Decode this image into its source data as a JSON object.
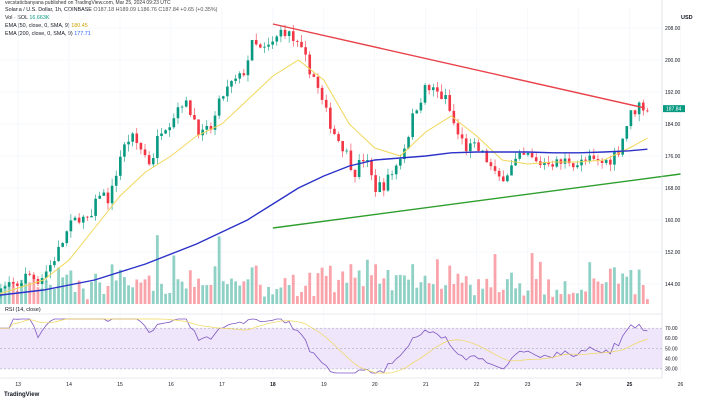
{
  "header": {
    "publisher": "vecstaticbanyana published on TradingView.com, Mar 25, 2024 09:23 UTC",
    "symbol": "Solana / U.S. Dollar, 1h, COINBASE",
    "ohlc": "O187.18 H189.09 L186.76 C187.84 +0.65 (+0.35%)",
    "vol_label": "Vol · SOL",
    "vol_value": "16.663K",
    "ema50_label": "EMA (50, close, 0, SMA, 9)",
    "ema50_value": "180.45",
    "ema200_label": "EMA (200, close, 0, SMA, 9)",
    "ema200_value": "177.71"
  },
  "currency": "USD",
  "rsi_label": "RSI (14, close)",
  "footer_logo": "TradingView",
  "colors": {
    "up": "#089981",
    "down": "#f23645",
    "ema50": "#f0d75a",
    "ema200": "#2b32c8",
    "resistance": "#e8414a",
    "support": "#2e9e2e",
    "rsi_line": "#7e57c2",
    "rsi_band": "#efe6fb"
  },
  "chart_data": {
    "type": "candlestick",
    "symbol": "SOL/USD",
    "timeframe": "1h",
    "x_tick_labels": [
      "13",
      "14",
      "15",
      "16",
      "17",
      "18",
      "19",
      "20",
      "21",
      "22",
      "23",
      "24",
      "25",
      "26"
    ],
    "y_tick_labels": [
      "208.00",
      "200.00",
      "192.00",
      "184.00",
      "176.00",
      "168.00",
      "160.00",
      "152.00",
      "144.00"
    ],
    "ylim": [
      139,
      213
    ],
    "last_price": "187.84",
    "close_path": [
      [
        12.5,
        141.5
      ],
      [
        13.0,
        144.0
      ],
      [
        13.2,
        146.5
      ],
      [
        13.4,
        145.0
      ],
      [
        13.6,
        148.0
      ],
      [
        13.8,
        152.5
      ],
      [
        14.0,
        158.0
      ],
      [
        14.2,
        161.0
      ],
      [
        14.4,
        159.0
      ],
      [
        14.6,
        167.0
      ],
      [
        14.8,
        165.0
      ],
      [
        15.0,
        176.0
      ],
      [
        15.2,
        181.0
      ],
      [
        15.4,
        178.0
      ],
      [
        15.6,
        174.0
      ],
      [
        15.8,
        183.0
      ],
      [
        16.0,
        185.0
      ],
      [
        16.2,
        190.0
      ],
      [
        16.4,
        187.0
      ],
      [
        16.6,
        181.0
      ],
      [
        16.8,
        183.0
      ],
      [
        17.0,
        191.0
      ],
      [
        17.2,
        194.0
      ],
      [
        17.4,
        196.0
      ],
      [
        17.6,
        204.0
      ],
      [
        17.8,
        202.0
      ],
      [
        18.0,
        204.0
      ],
      [
        18.2,
        208.0
      ],
      [
        18.4,
        205.0
      ],
      [
        18.6,
        201.0
      ],
      [
        18.8,
        196.0
      ],
      [
        19.0,
        188.0
      ],
      [
        19.2,
        182.0
      ],
      [
        19.4,
        178.0
      ],
      [
        19.6,
        172.0
      ],
      [
        19.8,
        176.0
      ],
      [
        20.0,
        168.0
      ],
      [
        20.2,
        169.0
      ],
      [
        20.4,
        173.0
      ],
      [
        20.6,
        179.0
      ],
      [
        20.8,
        188.0
      ],
      [
        21.0,
        193.0
      ],
      [
        21.2,
        192.0
      ],
      [
        21.4,
        190.0
      ],
      [
        21.6,
        182.0
      ],
      [
        21.8,
        178.0
      ],
      [
        22.0,
        178.0
      ],
      [
        22.2,
        175.0
      ],
      [
        22.4,
        170.0
      ],
      [
        22.6,
        172.0
      ],
      [
        22.8,
        175.0
      ],
      [
        23.0,
        176.0
      ],
      [
        23.2,
        174.0
      ],
      [
        23.4,
        175.0
      ],
      [
        23.6,
        174.0
      ],
      [
        23.8,
        175.0
      ],
      [
        24.0,
        174.0
      ],
      [
        24.2,
        175.0
      ],
      [
        24.4,
        174.0
      ],
      [
        24.6,
        175.0
      ],
      [
        24.8,
        178.0
      ],
      [
        25.0,
        186.0
      ],
      [
        25.2,
        189.0
      ],
      [
        25.35,
        187.84
      ]
    ],
    "ema50_path": [
      [
        12.5,
        141.0
      ],
      [
        13.5,
        145.0
      ],
      [
        14.0,
        150.0
      ],
      [
        14.5,
        158.0
      ],
      [
        15.0,
        166.0
      ],
      [
        15.5,
        172.0
      ],
      [
        16.0,
        176.0
      ],
      [
        16.5,
        181.0
      ],
      [
        17.0,
        184.0
      ],
      [
        17.5,
        190.0
      ],
      [
        18.0,
        196.0
      ],
      [
        18.5,
        200.0
      ],
      [
        19.0,
        195.0
      ],
      [
        19.5,
        184.0
      ],
      [
        20.0,
        178.0
      ],
      [
        20.5,
        176.0
      ],
      [
        21.0,
        182.0
      ],
      [
        21.5,
        186.0
      ],
      [
        22.0,
        181.0
      ],
      [
        22.5,
        175.0
      ],
      [
        23.0,
        174.0
      ],
      [
        23.5,
        174.5
      ],
      [
        24.0,
        174.5
      ],
      [
        24.5,
        175.0
      ],
      [
        25.0,
        178.0
      ],
      [
        25.35,
        180.45
      ]
    ],
    "ema200_path": [
      [
        12.5,
        141.0
      ],
      [
        13.5,
        142.5
      ],
      [
        14.5,
        145.0
      ],
      [
        15.5,
        149.0
      ],
      [
        16.5,
        154.0
      ],
      [
        17.5,
        160.0
      ],
      [
        18.0,
        164.0
      ],
      [
        18.5,
        168.0
      ],
      [
        19.0,
        171.0
      ],
      [
        19.5,
        173.5
      ],
      [
        20.0,
        175.0
      ],
      [
        20.5,
        175.5
      ],
      [
        21.0,
        176.0
      ],
      [
        21.5,
        176.8
      ],
      [
        22.0,
        177.0
      ],
      [
        22.5,
        177.0
      ],
      [
        23.0,
        177.0
      ],
      [
        23.5,
        176.8
      ],
      [
        24.0,
        176.8
      ],
      [
        24.5,
        177.0
      ],
      [
        25.0,
        177.3
      ],
      [
        25.35,
        177.71
      ]
    ],
    "trendline_resistance": [
      [
        18.0,
        209.0
      ],
      [
        25.3,
        188.0
      ]
    ],
    "trendline_support": [
      [
        18.0,
        158.0
      ],
      [
        26.0,
        171.5
      ]
    ],
    "volume_bars_count": 160,
    "rsi": {
      "ylim": [
        25,
        80
      ],
      "y_tick_labels": [
        "70.00",
        "60.00",
        "50.00",
        "40.00",
        "30.00"
      ],
      "band": [
        30,
        70
      ],
      "midline": 50
    }
  }
}
